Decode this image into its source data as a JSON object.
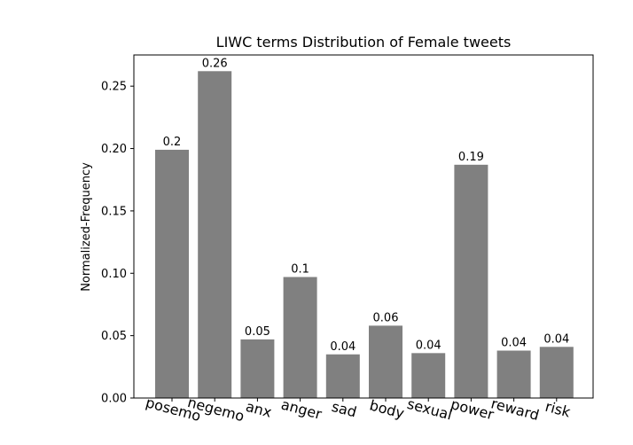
{
  "chart_data": {
    "type": "bar",
    "title": "LIWC terms Distribution of Female tweets",
    "xlabel": "",
    "ylabel": "Normalized-Frequency",
    "categories": [
      "posemo",
      "negemo",
      "anx",
      "anger",
      "sad",
      "body",
      "sexual",
      "power",
      "reward",
      "risk"
    ],
    "values": [
      0.199,
      0.262,
      0.047,
      0.097,
      0.035,
      0.058,
      0.036,
      0.187,
      0.038,
      0.041
    ],
    "data_labels": [
      "0.2",
      "0.26",
      "0.05",
      "0.1",
      "0.04",
      "0.06",
      "0.04",
      "0.19",
      "0.04",
      "0.04"
    ],
    "yticks": [
      0.0,
      0.05,
      0.1,
      0.15,
      0.2,
      0.25
    ],
    "ytick_labels": [
      "0.00",
      "0.05",
      "0.10",
      "0.15",
      "0.20",
      "0.25"
    ],
    "ylim": [
      0,
      0.275
    ],
    "grid": false,
    "bar_color": "#808080"
  }
}
